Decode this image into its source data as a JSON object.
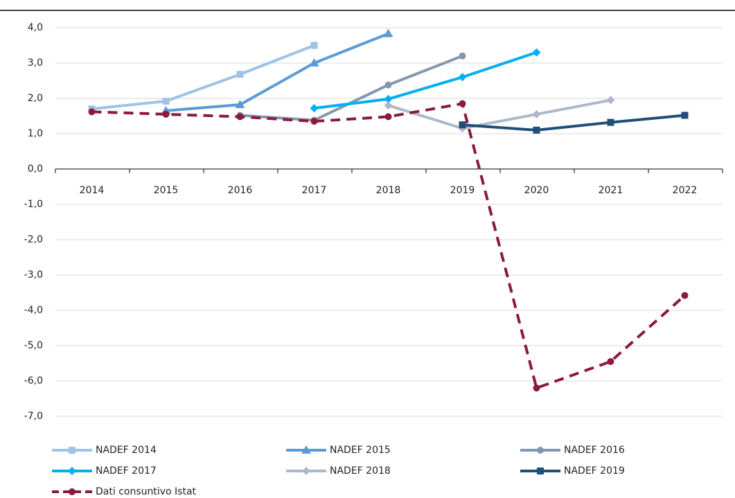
{
  "chart_data": {
    "type": "line",
    "categories": [
      "2014",
      "2015",
      "2016",
      "2017",
      "2018",
      "2019",
      "2020",
      "2021",
      "2022"
    ],
    "series": [
      {
        "name": "NADEF 2014",
        "color": "#9dc3e6",
        "marker": "square",
        "dashed": false,
        "values": [
          1.7,
          1.92,
          2.68,
          3.5,
          null,
          null,
          null,
          null,
          null
        ]
      },
      {
        "name": "NADEF 2015",
        "color": "#5b9bd5",
        "marker": "triangle",
        "dashed": false,
        "values": [
          null,
          1.65,
          1.82,
          3.0,
          3.83,
          null,
          null,
          null,
          null
        ]
      },
      {
        "name": "NADEF 2016",
        "color": "#8497b0",
        "marker": "circle",
        "dashed": false,
        "values": [
          null,
          null,
          1.52,
          1.38,
          2.38,
          3.2,
          null,
          null,
          null
        ]
      },
      {
        "name": "NADEF 2017",
        "color": "#00b0f0",
        "marker": "diamond",
        "dashed": false,
        "values": [
          null,
          null,
          null,
          1.72,
          1.98,
          2.6,
          3.3,
          null,
          null
        ]
      },
      {
        "name": "NADEF 2018",
        "color": "#adb9ca",
        "marker": "diamond",
        "dashed": false,
        "values": [
          null,
          null,
          null,
          null,
          1.8,
          1.15,
          1.55,
          1.95,
          null
        ]
      },
      {
        "name": "NADEF 2019",
        "color": "#1f4e79",
        "marker": "square",
        "dashed": false,
        "values": [
          null,
          null,
          null,
          null,
          null,
          1.25,
          1.1,
          1.32,
          1.52
        ]
      },
      {
        "name": "Dati consuntivo Istat",
        "color": "#8b1a3c",
        "marker": "circle",
        "dashed": true,
        "values": [
          1.62,
          1.55,
          1.48,
          1.35,
          1.48,
          1.85,
          -6.2,
          -5.45,
          -3.58
        ]
      }
    ],
    "ylim": [
      -7,
      4
    ],
    "yticks": [
      {
        "value": -7,
        "label": "-7,0"
      },
      {
        "value": -6,
        "label": "-6,0"
      },
      {
        "value": -5,
        "label": "-5,0"
      },
      {
        "value": -4,
        "label": "-4,0"
      },
      {
        "value": -3,
        "label": "-3,0"
      },
      {
        "value": -2,
        "label": "-2,0"
      },
      {
        "value": -1,
        "label": "-1,0"
      },
      {
        "value": 0,
        "label": "0,0"
      },
      {
        "value": 1,
        "label": "1,0"
      },
      {
        "value": 2,
        "label": "2,0"
      },
      {
        "value": 3,
        "label": "3,0"
      },
      {
        "value": 4,
        "label": "4,0"
      }
    ],
    "grid": true
  }
}
